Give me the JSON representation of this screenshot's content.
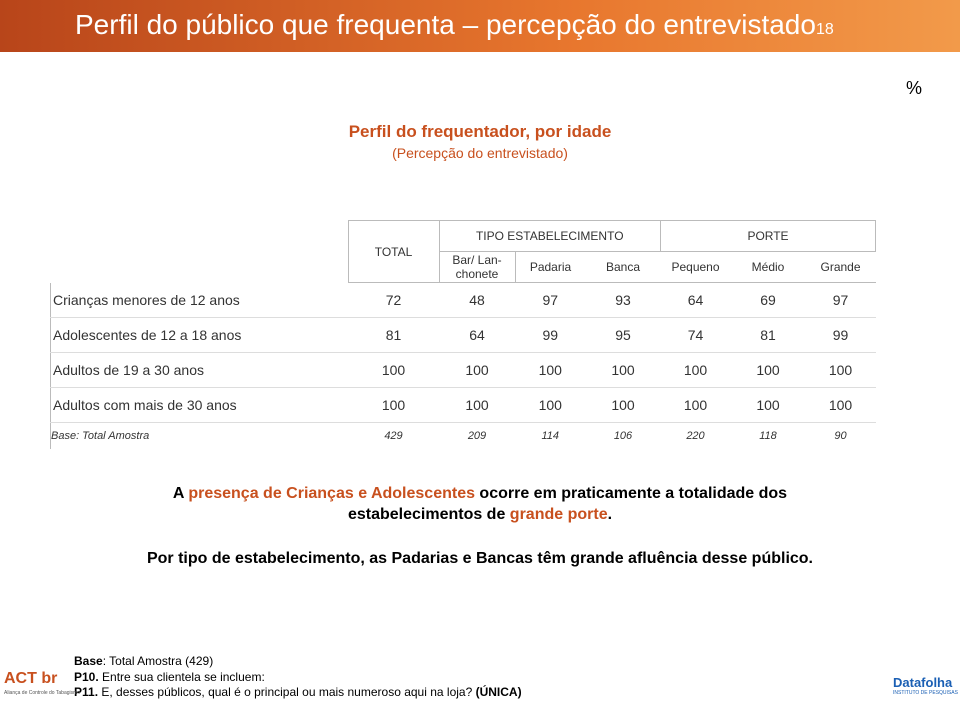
{
  "header": {
    "title": "Perfil do público que frequenta – percepção do entrevistado",
    "page": "18"
  },
  "unit": "%",
  "subtitle": [
    "Perfil do frequentador, por idade",
    "(Percepção do entrevistado)"
  ],
  "table": {
    "groups": [
      {
        "label": "TIPO ESTABELECIMENTO",
        "span": 3
      },
      {
        "label": "PORTE",
        "span": 3
      }
    ],
    "columns": [
      "TOTAL",
      "Bar/ Lan-\nchonete",
      "Padaria",
      "Banca",
      "Pequeno",
      "Médio",
      "Grande"
    ],
    "rows": [
      {
        "label": "Crianças menores de 12 anos",
        "values": [
          72,
          48,
          97,
          93,
          64,
          69,
          97
        ]
      },
      {
        "label": "Adolescentes de 12 a 18 anos",
        "values": [
          81,
          64,
          99,
          95,
          74,
          81,
          99
        ]
      },
      {
        "label": "Adultos de 19 a 30 anos",
        "values": [
          100,
          100,
          100,
          100,
          100,
          100,
          100
        ]
      },
      {
        "label": "Adultos com mais de 30 anos",
        "values": [
          100,
          100,
          100,
          100,
          100,
          100,
          100
        ]
      }
    ],
    "base": {
      "label": "Base: Total Amostra",
      "values": [
        429,
        209,
        114,
        106,
        220,
        118,
        90
      ]
    }
  },
  "paragraphs": [
    [
      {
        "text": "A ",
        "color": "#000000"
      },
      {
        "text": "presença de Crianças e Adolescentes",
        "color": "#c8501e"
      },
      {
        "text": " ocorre em praticamente a totalidade dos estabelecimentos de ",
        "color": "#000000"
      },
      {
        "text": "grande porte",
        "color": "#c8501e"
      },
      {
        "text": ".",
        "color": "#000000"
      }
    ],
    [
      {
        "text": "Por tipo de estabelecimento, as Padarias e Bancas têm grande afluência desse público.",
        "color": "#000000"
      }
    ]
  ],
  "notes": [
    [
      {
        "text": "Base",
        "bold": true
      },
      {
        "text": ": Total Amostra (429)",
        "bold": false
      }
    ],
    [
      {
        "text": "P10.",
        "bold": true
      },
      {
        "text": " Entre sua clientela se incluem:",
        "bold": false
      }
    ],
    [
      {
        "text": "P11.",
        "bold": true
      },
      {
        "text": " E, desses públicos, qual é o principal ou mais numeroso aqui na loja? ",
        "bold": false
      },
      {
        "text": "(ÚNICA)",
        "bold": true
      }
    ]
  ],
  "logos": {
    "left": "ACT br",
    "left_caption": "Aliança de Controle do Tabagismo",
    "right": "Datafolha",
    "right_caption": "INSTITUTO DE PESQUISAS"
  }
}
